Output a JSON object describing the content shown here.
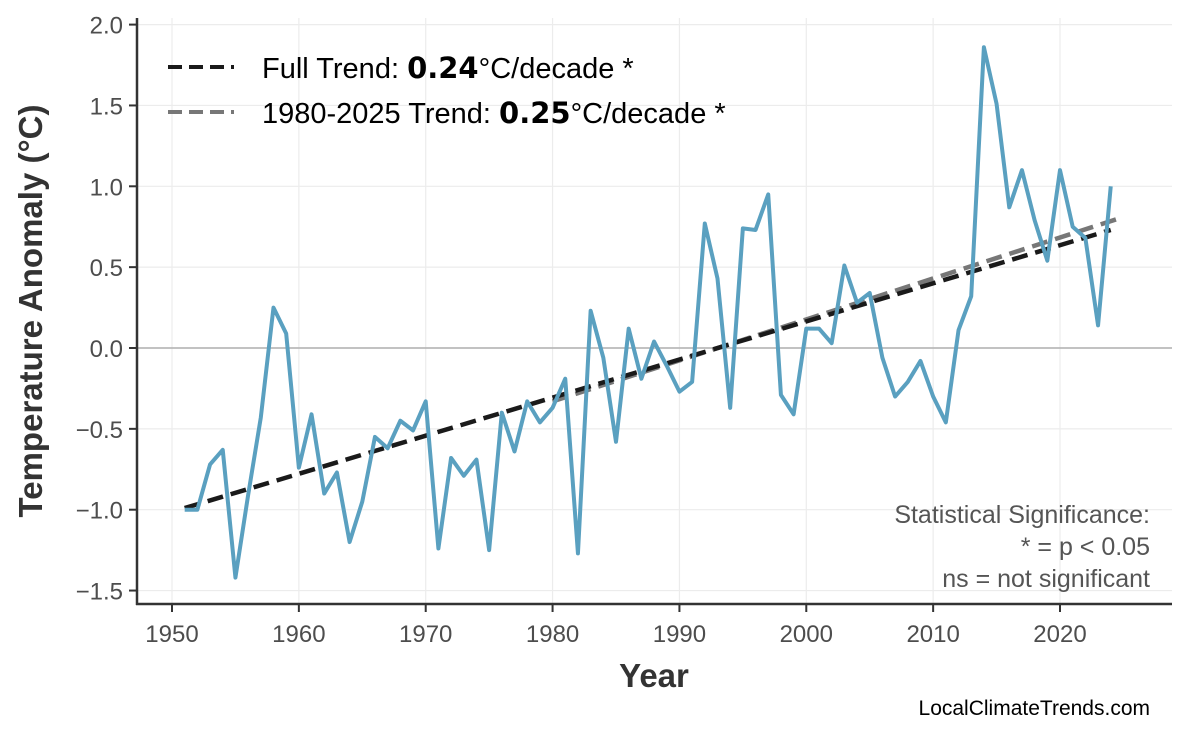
{
  "chart_data": {
    "type": "line",
    "title": "",
    "xlabel": "Year",
    "ylabel": "Temperature Anomaly (°C)",
    "xlim": [
      1948.7,
      2028.5
    ],
    "ylim": [
      -1.58,
      2.05
    ],
    "x_ticks": [
      1950,
      1960,
      1970,
      1980,
      1990,
      2000,
      2010,
      2020
    ],
    "y_ticks": [
      -1.5,
      -1.0,
      -0.5,
      0.0,
      0.5,
      1.0,
      1.5,
      2.0
    ],
    "y_tick_labels": [
      "−1.5",
      "−1.0",
      "−0.5",
      "0.0",
      "0.5",
      "1.0",
      "1.5",
      "2.0"
    ],
    "grid": true,
    "colors": {
      "series": "#5aa0c0",
      "full_trend": "#1a1a1a",
      "recent_trend": "#777777",
      "zero_line": "#b0b0b0",
      "grid": "#ececec"
    },
    "series": [
      {
        "x": [
          1951,
          1952,
          1953,
          1954,
          1955,
          1956,
          1957,
          1958,
          1959,
          1960,
          1961,
          1962,
          1963,
          1964,
          1965,
          1966,
          1967,
          1968,
          1969,
          1970,
          1971,
          1972,
          1973,
          1974,
          1975,
          1976,
          1977,
          1978,
          1979,
          1980,
          1981,
          1982,
          1983,
          1984,
          1985,
          1986,
          1987,
          1988,
          1989,
          1990,
          1991,
          1992,
          1993,
          1994,
          1995,
          1996,
          1997,
          1998,
          1999,
          2000,
          2001,
          2002,
          2003,
          2004,
          2005,
          2006,
          2007,
          2008,
          2009,
          2010,
          2011,
          2012,
          2013,
          2014,
          2015,
          2016,
          2017,
          2018,
          2019,
          2020,
          2021,
          2022,
          2023,
          2024
        ],
        "values": [
          -1.0,
          -1.0,
          -0.72,
          -0.63,
          -1.42,
          -0.91,
          -0.43,
          0.25,
          0.09,
          -0.74,
          -0.41,
          -0.9,
          -0.77,
          -1.2,
          -0.95,
          -0.55,
          -0.62,
          -0.45,
          -0.51,
          -0.33,
          -1.24,
          -0.68,
          -0.79,
          -0.69,
          -1.25,
          -0.4,
          -0.64,
          -0.33,
          -0.46,
          -0.37,
          -0.19,
          -1.27,
          0.23,
          -0.06,
          -0.58,
          0.12,
          -0.19,
          0.04,
          -0.11,
          -0.27,
          -0.21,
          0.77,
          0.43,
          -0.37,
          0.74,
          0.73,
          0.95,
          -0.29,
          -0.41,
          0.12,
          0.12,
          0.03,
          0.51,
          0.28,
          0.34,
          -0.06,
          -0.3,
          -0.21,
          -0.08,
          -0.3,
          -0.46,
          0.11,
          0.32,
          1.86,
          1.51,
          0.87,
          1.1,
          0.79,
          0.54,
          1.1,
          0.75,
          0.68,
          0.14,
          1.0
        ]
      }
    ],
    "trend_lines": [
      {
        "name": "Full Trend",
        "x": [
          1951,
          2024
        ],
        "y": [
          -0.99,
          0.73
        ]
      },
      {
        "name": "1980-2025 Trend",
        "x": [
          1980,
          2025
        ],
        "y": [
          -0.33,
          0.81
        ]
      }
    ],
    "legend": {
      "placement": "top-left",
      "items": [
        {
          "prefix": "Full Trend: ",
          "value": "0.24",
          "suffix": "°C/decade *"
        },
        {
          "prefix": "1980-2025 Trend: ",
          "value": "0.25",
          "suffix": "°C/decade *"
        }
      ]
    },
    "annotation": [
      "Statistical Significance:",
      "* = p < 0.05",
      "ns = not significant"
    ],
    "credit": "LocalClimateTrends.com"
  }
}
